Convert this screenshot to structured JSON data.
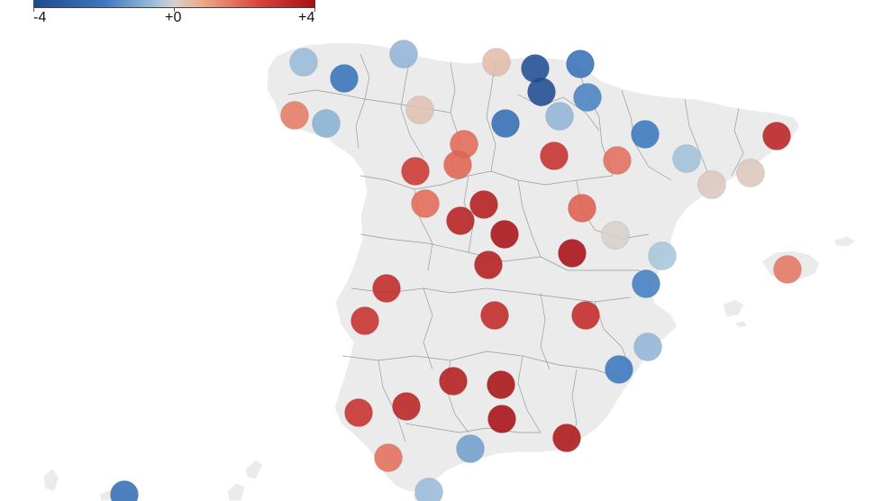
{
  "legend": {
    "min_label": "-4",
    "mid_label": "+0",
    "max_label": "+4",
    "scale_min": -4,
    "scale_max": 4,
    "colors": {
      "strong_negative": "#1d4a8f",
      "negative": "#3a78be",
      "light_negative": "#a9c6dc",
      "neutral": "#d6d0cc",
      "light_positive": "#efa888",
      "positive": "#d9443b",
      "strong_positive": "#a70f14"
    }
  },
  "map": {
    "land_color": "#ebebeb",
    "border_color": "#9a9a9a"
  },
  "stations": [
    {
      "anomaly": -0.8
    },
    {
      "anomaly": -0.9
    },
    {
      "anomaly": -2.2
    },
    {
      "anomaly": 0.4
    },
    {
      "anomaly": -3.8
    },
    {
      "anomaly": -2.3
    },
    {
      "anomaly": 1.5
    },
    {
      "anomaly": -1.0
    },
    {
      "anomaly": 0.3
    },
    {
      "anomaly": -3.9
    },
    {
      "anomaly": -1.8
    },
    {
      "anomaly": -2.5
    },
    {
      "anomaly": -0.9
    },
    {
      "anomaly": -2.0
    },
    {
      "anomaly": 3.4
    },
    {
      "anomaly": 1.8
    },
    {
      "anomaly": 3.0
    },
    {
      "anomaly": 1.7
    },
    {
      "anomaly": 2.8
    },
    {
      "anomaly": 1.9
    },
    {
      "anomaly": -0.7
    },
    {
      "anomaly": 0.2
    },
    {
      "anomaly": 0.2
    },
    {
      "anomaly": 1.8
    },
    {
      "anomaly": 3.6
    },
    {
      "anomaly": 3.5
    },
    {
      "anomaly": 2.0
    },
    {
      "anomaly": 3.9
    },
    {
      "anomaly": 0.0
    },
    {
      "anomaly": -0.6
    },
    {
      "anomaly": 3.6
    },
    {
      "anomaly": 4.0
    },
    {
      "anomaly": -1.9
    },
    {
      "anomaly": 1.6
    },
    {
      "anomaly": 3.2
    },
    {
      "anomaly": 3.0
    },
    {
      "anomaly": 3.2
    },
    {
      "anomaly": 3.2
    },
    {
      "anomaly": -0.9
    },
    {
      "anomaly": 3.6
    },
    {
      "anomaly": -2.0
    },
    {
      "anomaly": 3.0
    },
    {
      "anomaly": 3.4
    },
    {
      "anomaly": 3.9
    },
    {
      "anomaly": 4.0
    },
    {
      "anomaly": 3.8
    },
    {
      "anomaly": 1.7
    },
    {
      "anomaly": -1.3
    },
    {
      "anomaly": -2.4
    },
    {
      "anomaly": -0.8
    }
  ]
}
